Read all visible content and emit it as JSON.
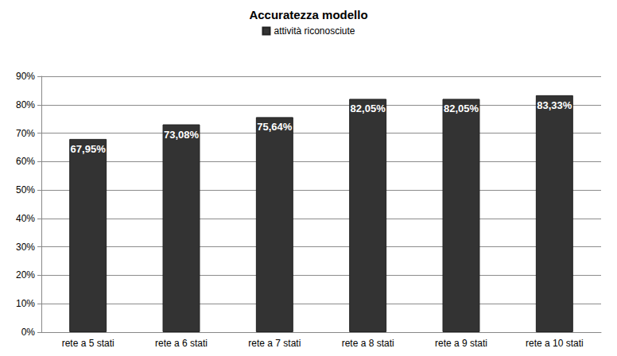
{
  "chart_data": {
    "type": "bar",
    "title": "Accuratezza modello",
    "categories": [
      "rete a 5 stati",
      "rete a 6 stati",
      "rete a 7 stati",
      "rete a 8 stati",
      "rete a 9 stati",
      "rete a 10 stati"
    ],
    "series": [
      {
        "name": "attività riconosciute",
        "color": "#333333",
        "values": [
          67.95,
          73.08,
          75.64,
          82.05,
          82.05,
          83.33
        ],
        "value_labels": [
          "67,95%",
          "73,08%",
          "75,64%",
          "82,05%",
          "82,05%",
          "83,33%"
        ]
      }
    ],
    "ylim": [
      0,
      90
    ],
    "yticks": [
      {
        "value": 0,
        "label": "0%"
      },
      {
        "value": 10,
        "label": "10%"
      },
      {
        "value": 20,
        "label": "20%"
      },
      {
        "value": 30,
        "label": "30%"
      },
      {
        "value": 40,
        "label": "40%"
      },
      {
        "value": 50,
        "label": "50%"
      },
      {
        "value": 60,
        "label": "60%"
      },
      {
        "value": 70,
        "label": "70%"
      },
      {
        "value": 80,
        "label": "80%"
      },
      {
        "value": 90,
        "label": "90%"
      }
    ],
    "grid": true,
    "legend": "top",
    "data_labels": true
  }
}
